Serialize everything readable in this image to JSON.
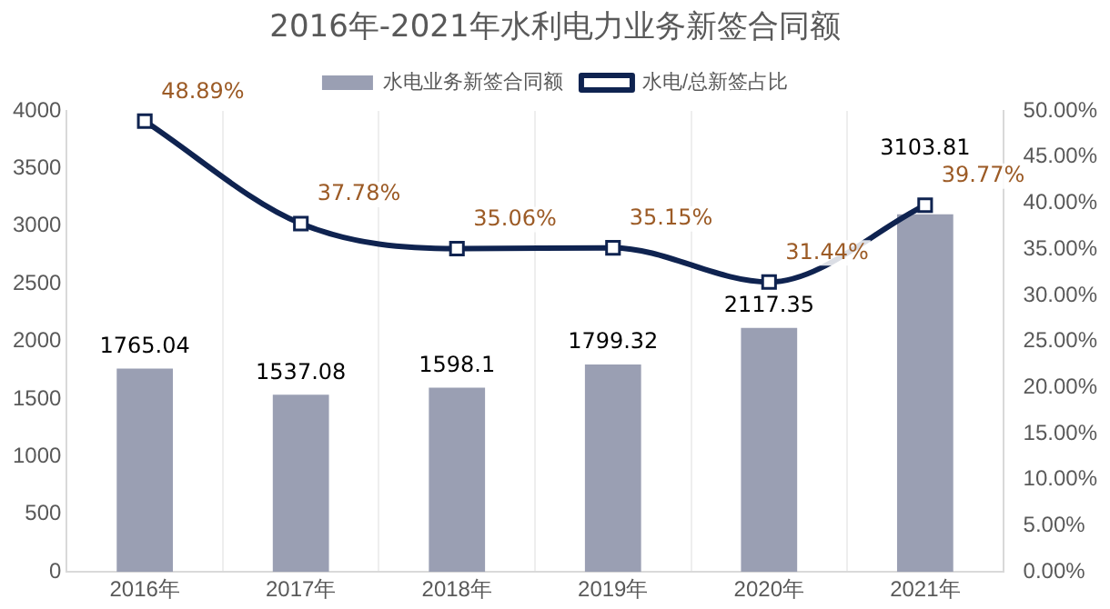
{
  "chart_data": {
    "type": "bar",
    "title": "2016年-2021年水利电力业务新签合同额",
    "categories": [
      "2016年",
      "2017年",
      "2018年",
      "2019年",
      "2020年",
      "2021年"
    ],
    "series": [
      {
        "name": "水电业务新签合同额",
        "color": "#9a9fb3",
        "values": [
          1765.04,
          1537.08,
          1598.1,
          1799.32,
          2117.35,
          3103.81
        ]
      },
      {
        "name": "水电/总新签占比",
        "type": "line",
        "axis": "y2",
        "color": "#0f2350",
        "values": [
          48.89,
          37.78,
          35.06,
          35.15,
          31.44,
          39.77
        ],
        "value_labels": [
          "48.89%",
          "37.78%",
          "35.06%",
          "35.15%",
          "31.44%",
          "39.77%"
        ]
      }
    ],
    "ylim": [
      0,
      4000
    ],
    "yticks": [
      0,
      500,
      1000,
      1500,
      2000,
      2500,
      3000,
      3500,
      4000
    ],
    "y2lim": [
      0,
      50
    ],
    "y2ticks": [
      {
        "value": 0,
        "label": "0.00%"
      },
      {
        "value": 5,
        "label": "5.00%"
      },
      {
        "value": 10,
        "label": "10.00%"
      },
      {
        "value": 15,
        "label": "15.00%"
      },
      {
        "value": 20,
        "label": "20.00%"
      },
      {
        "value": 25,
        "label": "25.00%"
      },
      {
        "value": 30,
        "label": "30.00%"
      },
      {
        "value": 35,
        "label": "35.00%"
      },
      {
        "value": 40,
        "label": "40.00%"
      },
      {
        "value": 45,
        "label": "45.00%"
      },
      {
        "value": 50,
        "label": "50.00%"
      }
    ],
    "data_labels": true,
    "grid": "x",
    "legend": "top",
    "marker": "square"
  }
}
